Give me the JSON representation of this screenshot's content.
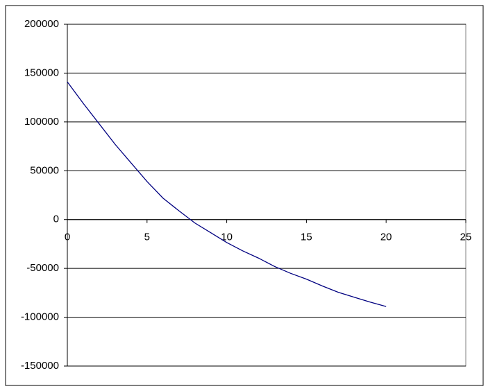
{
  "chart_data": {
    "type": "line",
    "x": [
      0,
      1,
      2,
      3,
      4,
      5,
      6,
      7,
      8,
      9,
      10,
      11,
      12,
      13,
      14,
      15,
      16,
      17,
      18,
      19,
      20
    ],
    "series": [
      {
        "color": "#000080",
        "values": [
          141000,
          119000,
          98000,
          77000,
          58000,
          39000,
          22000,
          9000,
          -3500,
          -13500,
          -23500,
          -32000,
          -39500,
          -48000,
          -55000,
          -61000,
          -68000,
          -74500,
          -79500,
          -84500,
          -89000
        ]
      }
    ],
    "xlim": [
      0,
      25
    ],
    "xticks": [
      0,
      5,
      10,
      15,
      20,
      25
    ],
    "ylim": [
      -150000,
      200000
    ],
    "yticks": [
      -150000,
      -100000,
      -50000,
      0,
      50000,
      100000,
      150000,
      200000
    ],
    "grid": true
  }
}
